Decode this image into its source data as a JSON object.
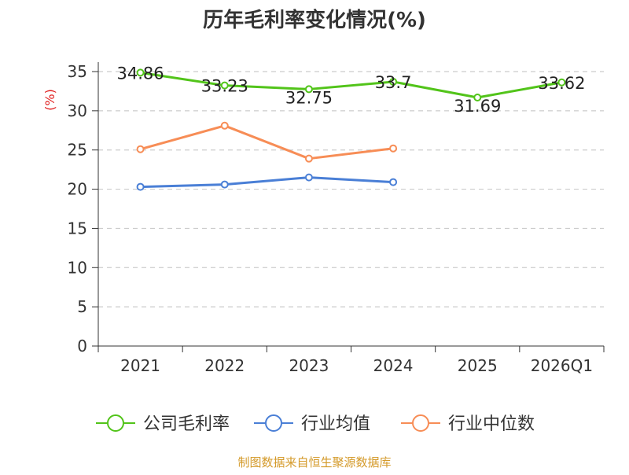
{
  "chart_data": {
    "type": "line",
    "title": "历年毛利率变化情况(%)",
    "ylabel": "(%)",
    "xlabel": "",
    "categories": [
      "2021",
      "2022",
      "2023",
      "2024",
      "2025",
      "2026Q1"
    ],
    "y_ticks": [
      "0",
      "5",
      "10",
      "15",
      "20",
      "25",
      "30",
      "35"
    ],
    "ylim": [
      0,
      35
    ],
    "grid": true,
    "legend_position": "bottom",
    "series": [
      {
        "name": "公司毛利率",
        "color": "#52c41a",
        "values": [
          34.86,
          33.23,
          32.75,
          33.7,
          31.69,
          33.62
        ],
        "labels": [
          "34.86",
          "33.23",
          "32.75",
          "33.7",
          "31.69",
          "33.62"
        ]
      },
      {
        "name": "行业均值",
        "color": "#4a7fd6",
        "values": [
          20.3,
          20.6,
          21.5,
          20.9,
          null,
          null
        ]
      },
      {
        "name": "行业中位数",
        "color": "#f78d56",
        "values": [
          25.1,
          28.1,
          23.9,
          25.2,
          null,
          null
        ]
      }
    ],
    "footer": "制图数据来自恒生聚源数据库"
  }
}
